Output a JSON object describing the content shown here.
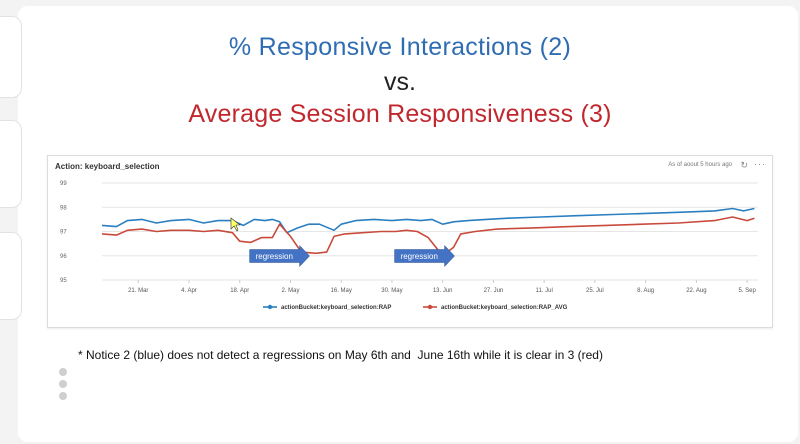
{
  "slide": {
    "title_line1": "% Responsive Interactions (2)",
    "title_line2": "vs.",
    "title_line3": "Average Session Responsiveness (3)",
    "footnote": "* Notice 2 (blue) does not detect a regressions on May 6th and  June 16th while it is clear in 3 (red)"
  },
  "panel": {
    "title": "Action: keyboard_selection",
    "status": "As of aoout 5 hours ago",
    "refresh_icon": "refresh-icon",
    "more_icon": "more-icon"
  },
  "annotations": [
    {
      "label": "regression",
      "x": "2020-04-29"
    },
    {
      "label": "regression",
      "x": "2020-06-08"
    }
  ],
  "colors": {
    "blue": "#2b7fc0",
    "red": "#c84b3c",
    "arrow": "#4472c4",
    "title_blue": "#2f6db3",
    "title_red": "#c0282e"
  },
  "chart_data": {
    "type": "line",
    "title": "Action: keyboard_selection",
    "x_ticks": [
      "21. Mar",
      "4. Apr",
      "18. Apr",
      "2. May",
      "16. May",
      "30. May",
      "13. Jun",
      "27. Jun",
      "11. Jul",
      "25. Jul",
      "8. Aug",
      "22. Aug",
      "5. Sep"
    ],
    "x_tick_dates": [
      "2020-03-21",
      "2020-04-04",
      "2020-04-18",
      "2020-05-02",
      "2020-05-16",
      "2020-05-30",
      "2020-06-13",
      "2020-06-27",
      "2020-07-11",
      "2020-07-25",
      "2020-08-08",
      "2020-08-22",
      "2020-09-05"
    ],
    "y_ticks": [
      95,
      96,
      97,
      98,
      99
    ],
    "ylim": [
      95,
      99
    ],
    "xlim": [
      "2020-03-11",
      "2020-09-08"
    ],
    "grid": true,
    "legend_position": "bottom",
    "series": [
      {
        "name": "actionBucket:keyboard_selection:RAP",
        "color": "#2b7fc0",
        "points": [
          [
            "2020-03-11",
            97.25
          ],
          [
            "2020-03-15",
            97.2
          ],
          [
            "2020-03-18",
            97.45
          ],
          [
            "2020-03-22",
            97.5
          ],
          [
            "2020-03-26",
            97.35
          ],
          [
            "2020-03-30",
            97.45
          ],
          [
            "2020-04-04",
            97.5
          ],
          [
            "2020-04-08",
            97.35
          ],
          [
            "2020-04-12",
            97.45
          ],
          [
            "2020-04-16",
            97.45
          ],
          [
            "2020-04-19",
            97.25
          ],
          [
            "2020-04-22",
            97.5
          ],
          [
            "2020-04-25",
            97.45
          ],
          [
            "2020-04-27",
            97.5
          ],
          [
            "2020-04-29",
            97.4
          ],
          [
            "2020-05-01",
            96.95
          ],
          [
            "2020-05-04",
            97.15
          ],
          [
            "2020-05-07",
            97.3
          ],
          [
            "2020-05-10",
            97.3
          ],
          [
            "2020-05-14",
            97.05
          ],
          [
            "2020-05-16",
            97.3
          ],
          [
            "2020-05-20",
            97.45
          ],
          [
            "2020-05-25",
            97.5
          ],
          [
            "2020-05-30",
            97.45
          ],
          [
            "2020-06-03",
            97.5
          ],
          [
            "2020-06-07",
            97.45
          ],
          [
            "2020-06-10",
            97.5
          ],
          [
            "2020-06-13",
            97.3
          ],
          [
            "2020-06-16",
            97.4
          ],
          [
            "2020-06-20",
            97.45
          ],
          [
            "2020-06-25",
            97.5
          ],
          [
            "2020-07-01",
            97.55
          ],
          [
            "2020-07-10",
            97.6
          ],
          [
            "2020-07-20",
            97.65
          ],
          [
            "2020-07-30",
            97.7
          ],
          [
            "2020-08-09",
            97.75
          ],
          [
            "2020-08-19",
            97.8
          ],
          [
            "2020-08-27",
            97.85
          ],
          [
            "2020-09-01",
            97.95
          ],
          [
            "2020-09-04",
            97.85
          ],
          [
            "2020-09-07",
            97.95
          ]
        ]
      },
      {
        "name": "actionBucket:keyboard_selection:RAP_AVG",
        "color": "#c84b3c",
        "points": [
          [
            "2020-03-11",
            96.9
          ],
          [
            "2020-03-15",
            96.85
          ],
          [
            "2020-03-18",
            97.05
          ],
          [
            "2020-03-22",
            97.1
          ],
          [
            "2020-03-26",
            97.0
          ],
          [
            "2020-03-30",
            97.05
          ],
          [
            "2020-04-04",
            97.05
          ],
          [
            "2020-04-08",
            97.0
          ],
          [
            "2020-04-12",
            97.05
          ],
          [
            "2020-04-16",
            96.95
          ],
          [
            "2020-04-18",
            96.6
          ],
          [
            "2020-04-21",
            96.55
          ],
          [
            "2020-04-24",
            96.75
          ],
          [
            "2020-04-27",
            96.75
          ],
          [
            "2020-04-29",
            97.3
          ],
          [
            "2020-05-02",
            96.8
          ],
          [
            "2020-05-05",
            96.15
          ],
          [
            "2020-05-09",
            96.1
          ],
          [
            "2020-05-12",
            96.15
          ],
          [
            "2020-05-14",
            96.8
          ],
          [
            "2020-05-17",
            96.9
          ],
          [
            "2020-05-22",
            96.95
          ],
          [
            "2020-05-27",
            97.0
          ],
          [
            "2020-05-31",
            97.0
          ],
          [
            "2020-06-03",
            97.05
          ],
          [
            "2020-06-06",
            97.0
          ],
          [
            "2020-06-09",
            96.75
          ],
          [
            "2020-06-13",
            96.0
          ],
          [
            "2020-06-16",
            96.35
          ],
          [
            "2020-06-18",
            96.9
          ],
          [
            "2020-06-22",
            97.0
          ],
          [
            "2020-06-28",
            97.1
          ],
          [
            "2020-07-08",
            97.15
          ],
          [
            "2020-07-18",
            97.2
          ],
          [
            "2020-07-28",
            97.25
          ],
          [
            "2020-08-07",
            97.3
          ],
          [
            "2020-08-17",
            97.35
          ],
          [
            "2020-08-27",
            97.45
          ],
          [
            "2020-09-01",
            97.6
          ],
          [
            "2020-09-05",
            97.45
          ],
          [
            "2020-09-07",
            97.55
          ]
        ]
      }
    ]
  }
}
